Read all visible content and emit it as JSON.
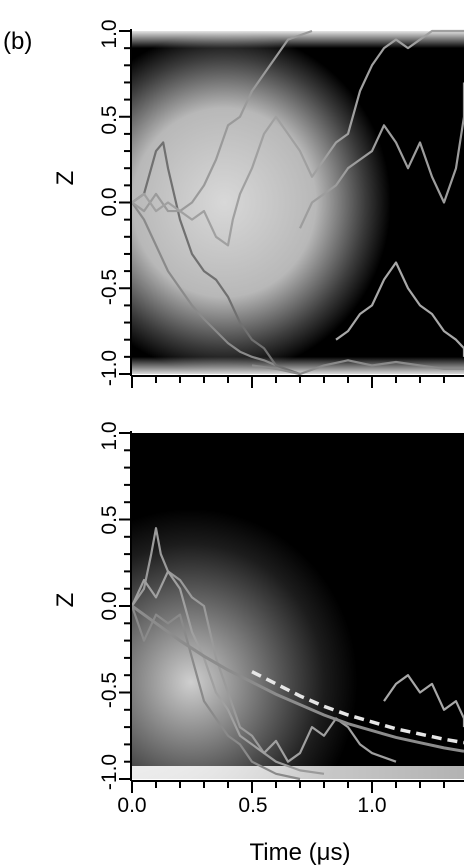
{
  "figure": {
    "panel_label": "(b)",
    "xlabel": "Time (μs)"
  },
  "chart_data": [
    {
      "type": "heatmap",
      "ylabel": "Z",
      "xlim": [
        0.0,
        1.4
      ],
      "ylim": [
        -1.0,
        1.0
      ],
      "yticks": [
        "1.0",
        "0.5",
        "0.0",
        "-0.5",
        "-1.0"
      ],
      "xticks": [],
      "grid": false,
      "colormap": [
        "#000000",
        "#ffffff"
      ],
      "trajectories": [
        {
          "color": "#8a8a8a",
          "points": [
            [
              0.0,
              0.0
            ],
            [
              0.05,
              -0.1
            ],
            [
              0.1,
              -0.25
            ],
            [
              0.15,
              -0.4
            ],
            [
              0.2,
              -0.5
            ],
            [
              0.25,
              -0.6
            ],
            [
              0.3,
              -0.68
            ],
            [
              0.35,
              -0.75
            ],
            [
              0.4,
              -0.82
            ],
            [
              0.45,
              -0.87
            ],
            [
              0.5,
              -0.9
            ],
            [
              0.55,
              -0.92
            ],
            [
              0.6,
              -0.95
            ],
            [
              0.65,
              -0.98
            ],
            [
              0.7,
              -1.0
            ]
          ]
        },
        {
          "color": "#707070",
          "points": [
            [
              0.0,
              0.0
            ],
            [
              0.05,
              0.05
            ],
            [
              0.1,
              0.3
            ],
            [
              0.13,
              0.35
            ],
            [
              0.15,
              0.2
            ],
            [
              0.2,
              -0.1
            ],
            [
              0.25,
              -0.3
            ],
            [
              0.3,
              -0.4
            ],
            [
              0.35,
              -0.45
            ],
            [
              0.4,
              -0.55
            ],
            [
              0.45,
              -0.7
            ],
            [
              0.5,
              -0.8
            ],
            [
              0.55,
              -0.85
            ],
            [
              0.6,
              -0.95
            ],
            [
              0.7,
              -1.0
            ]
          ]
        },
        {
          "color": "#9a9a9a",
          "points": [
            [
              0.0,
              0.0
            ],
            [
              0.05,
              -0.05
            ],
            [
              0.1,
              0.05
            ],
            [
              0.15,
              -0.05
            ],
            [
              0.2,
              -0.05
            ],
            [
              0.25,
              0.0
            ],
            [
              0.3,
              0.1
            ],
            [
              0.35,
              0.25
            ],
            [
              0.4,
              0.45
            ],
            [
              0.45,
              0.5
            ],
            [
              0.5,
              0.65
            ],
            [
              0.55,
              0.75
            ],
            [
              0.6,
              0.85
            ],
            [
              0.65,
              0.95
            ],
            [
              0.75,
              1.0
            ]
          ]
        },
        {
          "color": "#a0a0a0",
          "points": [
            [
              0.0,
              0.0
            ],
            [
              0.05,
              0.05
            ],
            [
              0.1,
              -0.05
            ],
            [
              0.15,
              0.0
            ],
            [
              0.2,
              -0.05
            ],
            [
              0.25,
              -0.1
            ],
            [
              0.3,
              -0.05
            ],
            [
              0.35,
              -0.2
            ],
            [
              0.4,
              -0.25
            ],
            [
              0.42,
              -0.1
            ],
            [
              0.45,
              0.05
            ],
            [
              0.5,
              0.2
            ],
            [
              0.55,
              0.4
            ],
            [
              0.6,
              0.5
            ],
            [
              0.65,
              0.4
            ],
            [
              0.7,
              0.3
            ],
            [
              0.75,
              0.15
            ],
            [
              0.8,
              0.25
            ],
            [
              0.85,
              0.35
            ],
            [
              0.9,
              0.4
            ],
            [
              0.95,
              0.65
            ],
            [
              1.0,
              0.8
            ],
            [
              1.05,
              0.9
            ],
            [
              1.1,
              0.95
            ],
            [
              1.15,
              0.9
            ],
            [
              1.2,
              0.95
            ],
            [
              1.25,
              1.0
            ],
            [
              1.4,
              1.0
            ]
          ]
        },
        {
          "color": "#9d9d9d",
          "points": [
            [
              0.7,
              -0.15
            ],
            [
              0.75,
              0.0
            ],
            [
              0.8,
              0.05
            ],
            [
              0.85,
              0.1
            ],
            [
              0.9,
              0.2
            ],
            [
              0.95,
              0.25
            ],
            [
              1.0,
              0.3
            ],
            [
              1.05,
              0.45
            ],
            [
              1.1,
              0.35
            ],
            [
              1.15,
              0.2
            ],
            [
              1.2,
              0.35
            ],
            [
              1.25,
              0.15
            ],
            [
              1.3,
              0.0
            ],
            [
              1.35,
              0.2
            ],
            [
              1.4,
              0.5
            ],
            [
              1.45,
              0.65
            ],
            [
              1.5,
              0.7
            ]
          ]
        },
        {
          "color": "#a8a8a8",
          "points": [
            [
              0.85,
              -0.8
            ],
            [
              0.9,
              -0.75
            ],
            [
              0.95,
              -0.65
            ],
            [
              1.0,
              -0.6
            ],
            [
              1.05,
              -0.45
            ],
            [
              1.1,
              -0.35
            ],
            [
              1.15,
              -0.5
            ],
            [
              1.2,
              -0.6
            ],
            [
              1.25,
              -0.65
            ],
            [
              1.3,
              -0.75
            ],
            [
              1.35,
              -0.8
            ],
            [
              1.4,
              -0.85
            ],
            [
              1.5,
              -0.9
            ]
          ]
        },
        {
          "color": "#8a8a8a",
          "points": [
            [
              0.5,
              -0.95
            ],
            [
              0.6,
              -0.97
            ],
            [
              0.7,
              -1.0
            ],
            [
              0.8,
              -0.95
            ],
            [
              0.9,
              -0.92
            ],
            [
              1.0,
              -0.95
            ],
            [
              1.1,
              -0.93
            ],
            [
              1.2,
              -0.95
            ],
            [
              1.3,
              -0.97
            ],
            [
              1.4,
              -0.97
            ],
            [
              1.5,
              -0.97
            ]
          ]
        }
      ]
    },
    {
      "type": "heatmap",
      "ylabel": "Z",
      "xlim": [
        0.0,
        1.4
      ],
      "ylim": [
        -1.0,
        1.0
      ],
      "yticks": [
        "1.0",
        "0.5",
        "0.0",
        "-0.5",
        "-1.0"
      ],
      "xticks": [
        "0.0",
        "0.5",
        "1.0"
      ],
      "grid": false,
      "colormap": [
        "#000000",
        "#ffffff"
      ],
      "mean_curve": {
        "color": "#8c8c8c",
        "points": [
          [
            0.0,
            0.0
          ],
          [
            0.1,
            -0.1
          ],
          [
            0.2,
            -0.2
          ],
          [
            0.3,
            -0.29
          ],
          [
            0.4,
            -0.37
          ],
          [
            0.5,
            -0.44
          ],
          [
            0.6,
            -0.51
          ],
          [
            0.7,
            -0.57
          ],
          [
            0.8,
            -0.63
          ],
          [
            0.9,
            -0.68
          ],
          [
            1.0,
            -0.72
          ],
          [
            1.1,
            -0.76
          ],
          [
            1.2,
            -0.79
          ],
          [
            1.3,
            -0.82
          ],
          [
            1.4,
            -0.84
          ]
        ]
      },
      "model_curve": {
        "color": "#e6e6e6",
        "points": [
          [
            0.5,
            -0.38
          ],
          [
            0.6,
            -0.45
          ],
          [
            0.7,
            -0.52
          ],
          [
            0.8,
            -0.58
          ],
          [
            0.9,
            -0.63
          ],
          [
            1.0,
            -0.67
          ],
          [
            1.1,
            -0.71
          ],
          [
            1.2,
            -0.74
          ],
          [
            1.3,
            -0.77
          ],
          [
            1.4,
            -0.79
          ]
        ]
      },
      "trajectories": [
        {
          "color": "#9a9a9a",
          "points": [
            [
              0.0,
              0.0
            ],
            [
              0.05,
              0.1
            ],
            [
              0.08,
              0.3
            ],
            [
              0.1,
              0.45
            ],
            [
              0.12,
              0.3
            ],
            [
              0.15,
              0.2
            ],
            [
              0.2,
              0.15
            ],
            [
              0.25,
              0.05
            ],
            [
              0.3,
              0.0
            ],
            [
              0.35,
              -0.3
            ],
            [
              0.4,
              -0.5
            ],
            [
              0.45,
              -0.7
            ],
            [
              0.5,
              -0.75
            ],
            [
              0.55,
              -0.85
            ],
            [
              0.6,
              -0.9
            ],
            [
              0.7,
              -0.95
            ],
            [
              0.8,
              -0.97
            ]
          ]
        },
        {
          "color": "#8a8a8a",
          "points": [
            [
              0.0,
              0.0
            ],
            [
              0.05,
              -0.2
            ],
            [
              0.1,
              -0.05
            ],
            [
              0.15,
              -0.1
            ],
            [
              0.2,
              -0.05
            ],
            [
              0.25,
              -0.3
            ],
            [
              0.3,
              -0.55
            ],
            [
              0.35,
              -0.65
            ],
            [
              0.4,
              -0.75
            ],
            [
              0.45,
              -0.8
            ],
            [
              0.5,
              -0.9
            ],
            [
              0.6,
              -0.97
            ],
            [
              0.7,
              -1.0
            ]
          ]
        },
        {
          "color": "#a0a0a0",
          "points": [
            [
              0.0,
              0.0
            ],
            [
              0.05,
              0.15
            ],
            [
              0.1,
              0.05
            ],
            [
              0.15,
              0.2
            ],
            [
              0.2,
              0.1
            ],
            [
              0.25,
              -0.15
            ],
            [
              0.3,
              -0.3
            ],
            [
              0.35,
              -0.5
            ],
            [
              0.4,
              -0.6
            ],
            [
              0.45,
              -0.75
            ],
            [
              0.5,
              -0.8
            ],
            [
              0.55,
              -0.85
            ],
            [
              0.6,
              -0.78
            ],
            [
              0.65,
              -0.9
            ],
            [
              0.7,
              -0.85
            ],
            [
              0.75,
              -0.7
            ],
            [
              0.8,
              -0.75
            ],
            [
              0.85,
              -0.65
            ],
            [
              0.9,
              -0.7
            ],
            [
              0.95,
              -0.8
            ],
            [
              1.0,
              -0.85
            ],
            [
              1.1,
              -0.9
            ]
          ]
        },
        {
          "color": "#a8a8a8",
          "points": [
            [
              1.05,
              -0.55
            ],
            [
              1.1,
              -0.45
            ],
            [
              1.15,
              -0.4
            ],
            [
              1.2,
              -0.5
            ],
            [
              1.25,
              -0.45
            ],
            [
              1.3,
              -0.6
            ],
            [
              1.35,
              -0.55
            ],
            [
              1.4,
              -0.65
            ],
            [
              1.5,
              -0.7
            ]
          ]
        }
      ]
    }
  ]
}
